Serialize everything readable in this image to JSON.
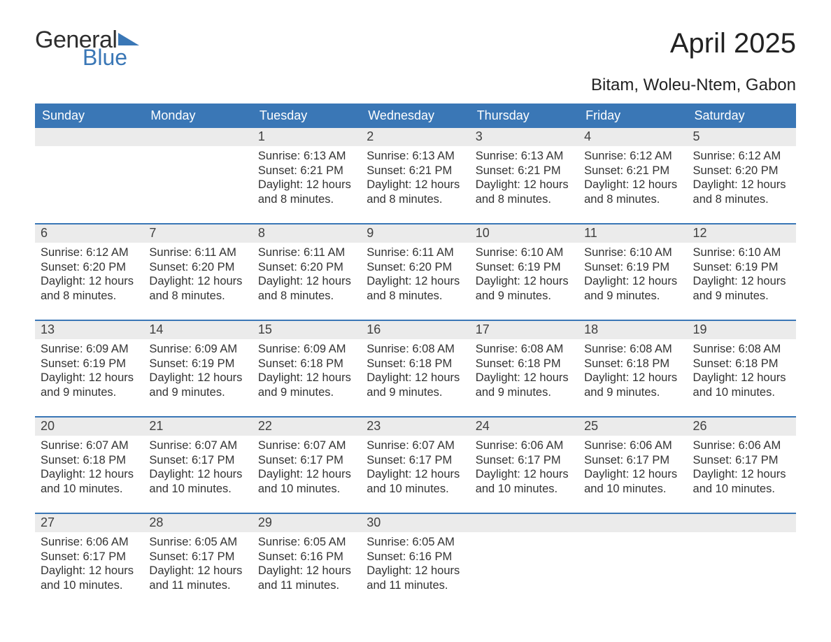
{
  "logo": {
    "text1": "General",
    "text2": "Blue",
    "color_general": "#2e2e2e",
    "color_blue": "#3a77b6",
    "tri_color": "#3a77b6"
  },
  "header": {
    "title": "April 2025",
    "location": "Bitam, Woleu-Ntem, Gabon",
    "title_fontsize": 40,
    "location_fontsize": 24
  },
  "calendar": {
    "header_bg": "#3a77b6",
    "header_fg": "#ffffff",
    "daynum_bg": "#ebebeb",
    "week_border_color": "#3a77b6",
    "text_color": "#333333",
    "day_labels": [
      "Sunday",
      "Monday",
      "Tuesday",
      "Wednesday",
      "Thursday",
      "Friday",
      "Saturday"
    ],
    "weeks": [
      [
        {
          "empty": true
        },
        {
          "empty": true
        },
        {
          "n": "1",
          "sunrise": "Sunrise: 6:13 AM",
          "sunset": "Sunset: 6:21 PM",
          "day_a": "Daylight: 12 hours",
          "day_b": "and 8 minutes."
        },
        {
          "n": "2",
          "sunrise": "Sunrise: 6:13 AM",
          "sunset": "Sunset: 6:21 PM",
          "day_a": "Daylight: 12 hours",
          "day_b": "and 8 minutes."
        },
        {
          "n": "3",
          "sunrise": "Sunrise: 6:13 AM",
          "sunset": "Sunset: 6:21 PM",
          "day_a": "Daylight: 12 hours",
          "day_b": "and 8 minutes."
        },
        {
          "n": "4",
          "sunrise": "Sunrise: 6:12 AM",
          "sunset": "Sunset: 6:21 PM",
          "day_a": "Daylight: 12 hours",
          "day_b": "and 8 minutes."
        },
        {
          "n": "5",
          "sunrise": "Sunrise: 6:12 AM",
          "sunset": "Sunset: 6:20 PM",
          "day_a": "Daylight: 12 hours",
          "day_b": "and 8 minutes."
        }
      ],
      [
        {
          "n": "6",
          "sunrise": "Sunrise: 6:12 AM",
          "sunset": "Sunset: 6:20 PM",
          "day_a": "Daylight: 12 hours",
          "day_b": "and 8 minutes."
        },
        {
          "n": "7",
          "sunrise": "Sunrise: 6:11 AM",
          "sunset": "Sunset: 6:20 PM",
          "day_a": "Daylight: 12 hours",
          "day_b": "and 8 minutes."
        },
        {
          "n": "8",
          "sunrise": "Sunrise: 6:11 AM",
          "sunset": "Sunset: 6:20 PM",
          "day_a": "Daylight: 12 hours",
          "day_b": "and 8 minutes."
        },
        {
          "n": "9",
          "sunrise": "Sunrise: 6:11 AM",
          "sunset": "Sunset: 6:20 PM",
          "day_a": "Daylight: 12 hours",
          "day_b": "and 8 minutes."
        },
        {
          "n": "10",
          "sunrise": "Sunrise: 6:10 AM",
          "sunset": "Sunset: 6:19 PM",
          "day_a": "Daylight: 12 hours",
          "day_b": "and 9 minutes."
        },
        {
          "n": "11",
          "sunrise": "Sunrise: 6:10 AM",
          "sunset": "Sunset: 6:19 PM",
          "day_a": "Daylight: 12 hours",
          "day_b": "and 9 minutes."
        },
        {
          "n": "12",
          "sunrise": "Sunrise: 6:10 AM",
          "sunset": "Sunset: 6:19 PM",
          "day_a": "Daylight: 12 hours",
          "day_b": "and 9 minutes."
        }
      ],
      [
        {
          "n": "13",
          "sunrise": "Sunrise: 6:09 AM",
          "sunset": "Sunset: 6:19 PM",
          "day_a": "Daylight: 12 hours",
          "day_b": "and 9 minutes."
        },
        {
          "n": "14",
          "sunrise": "Sunrise: 6:09 AM",
          "sunset": "Sunset: 6:19 PM",
          "day_a": "Daylight: 12 hours",
          "day_b": "and 9 minutes."
        },
        {
          "n": "15",
          "sunrise": "Sunrise: 6:09 AM",
          "sunset": "Sunset: 6:18 PM",
          "day_a": "Daylight: 12 hours",
          "day_b": "and 9 minutes."
        },
        {
          "n": "16",
          "sunrise": "Sunrise: 6:08 AM",
          "sunset": "Sunset: 6:18 PM",
          "day_a": "Daylight: 12 hours",
          "day_b": "and 9 minutes."
        },
        {
          "n": "17",
          "sunrise": "Sunrise: 6:08 AM",
          "sunset": "Sunset: 6:18 PM",
          "day_a": "Daylight: 12 hours",
          "day_b": "and 9 minutes."
        },
        {
          "n": "18",
          "sunrise": "Sunrise: 6:08 AM",
          "sunset": "Sunset: 6:18 PM",
          "day_a": "Daylight: 12 hours",
          "day_b": "and 9 minutes."
        },
        {
          "n": "19",
          "sunrise": "Sunrise: 6:08 AM",
          "sunset": "Sunset: 6:18 PM",
          "day_a": "Daylight: 12 hours",
          "day_b": "and 10 minutes."
        }
      ],
      [
        {
          "n": "20",
          "sunrise": "Sunrise: 6:07 AM",
          "sunset": "Sunset: 6:18 PM",
          "day_a": "Daylight: 12 hours",
          "day_b": "and 10 minutes."
        },
        {
          "n": "21",
          "sunrise": "Sunrise: 6:07 AM",
          "sunset": "Sunset: 6:17 PM",
          "day_a": "Daylight: 12 hours",
          "day_b": "and 10 minutes."
        },
        {
          "n": "22",
          "sunrise": "Sunrise: 6:07 AM",
          "sunset": "Sunset: 6:17 PM",
          "day_a": "Daylight: 12 hours",
          "day_b": "and 10 minutes."
        },
        {
          "n": "23",
          "sunrise": "Sunrise: 6:07 AM",
          "sunset": "Sunset: 6:17 PM",
          "day_a": "Daylight: 12 hours",
          "day_b": "and 10 minutes."
        },
        {
          "n": "24",
          "sunrise": "Sunrise: 6:06 AM",
          "sunset": "Sunset: 6:17 PM",
          "day_a": "Daylight: 12 hours",
          "day_b": "and 10 minutes."
        },
        {
          "n": "25",
          "sunrise": "Sunrise: 6:06 AM",
          "sunset": "Sunset: 6:17 PM",
          "day_a": "Daylight: 12 hours",
          "day_b": "and 10 minutes."
        },
        {
          "n": "26",
          "sunrise": "Sunrise: 6:06 AM",
          "sunset": "Sunset: 6:17 PM",
          "day_a": "Daylight: 12 hours",
          "day_b": "and 10 minutes."
        }
      ],
      [
        {
          "n": "27",
          "sunrise": "Sunrise: 6:06 AM",
          "sunset": "Sunset: 6:17 PM",
          "day_a": "Daylight: 12 hours",
          "day_b": "and 10 minutes."
        },
        {
          "n": "28",
          "sunrise": "Sunrise: 6:05 AM",
          "sunset": "Sunset: 6:17 PM",
          "day_a": "Daylight: 12 hours",
          "day_b": "and 11 minutes."
        },
        {
          "n": "29",
          "sunrise": "Sunrise: 6:05 AM",
          "sunset": "Sunset: 6:16 PM",
          "day_a": "Daylight: 12 hours",
          "day_b": "and 11 minutes."
        },
        {
          "n": "30",
          "sunrise": "Sunrise: 6:05 AM",
          "sunset": "Sunset: 6:16 PM",
          "day_a": "Daylight: 12 hours",
          "day_b": "and 11 minutes."
        },
        {
          "empty": true
        },
        {
          "empty": true
        },
        {
          "empty": true
        }
      ]
    ]
  }
}
